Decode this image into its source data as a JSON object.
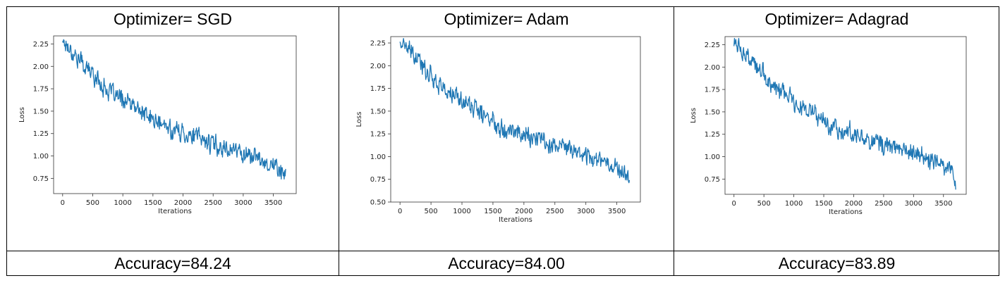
{
  "panels": [
    {
      "header": "Optimizer= SGD",
      "footer": "Accuracy=84.24"
    },
    {
      "header": "Optimizer= Adam",
      "footer": "Accuracy=84.00"
    },
    {
      "header": "Optimizer= Adagrad",
      "footer": "Accuracy=83.89"
    }
  ],
  "chart_data": [
    {
      "type": "line",
      "xlabel": "Iterations",
      "ylabel": "Loss",
      "xlim": [
        -150,
        3880
      ],
      "ylim": [
        0.58,
        2.34
      ],
      "xticks": [
        0,
        500,
        1000,
        1500,
        2000,
        2500,
        3000,
        3500
      ],
      "yticks": [
        0.75,
        1.0,
        1.25,
        1.5,
        1.75,
        2.0,
        2.25
      ],
      "line_color": "#1f77b4",
      "series": [
        {
          "x": [
            0,
            100,
            200,
            300,
            400,
            500,
            600,
            700,
            800,
            900,
            1000,
            1100,
            1200,
            1300,
            1400,
            1500,
            1600,
            1700,
            1800,
            1900,
            2000,
            2100,
            2200,
            2300,
            2400,
            2500,
            2600,
            2700,
            2800,
            2900,
            3000,
            3100,
            3200,
            3300,
            3400,
            3500,
            3600,
            3700
          ],
          "y": [
            2.3,
            2.22,
            2.13,
            2.06,
            1.98,
            1.92,
            1.84,
            1.76,
            1.7,
            1.66,
            1.63,
            1.59,
            1.54,
            1.5,
            1.44,
            1.41,
            1.36,
            1.33,
            1.3,
            1.28,
            1.26,
            1.24,
            1.22,
            1.19,
            1.16,
            1.13,
            1.11,
            1.09,
            1.08,
            1.06,
            1.03,
            1.01,
            0.99,
            0.96,
            0.93,
            0.89,
            0.86,
            0.75
          ]
        }
      ]
    },
    {
      "type": "line",
      "xlabel": "Iterations",
      "ylabel": "Loss",
      "xlim": [
        -150,
        3880
      ],
      "ylim": [
        0.5,
        2.32
      ],
      "xticks": [
        0,
        500,
        1000,
        1500,
        2000,
        2500,
        3000,
        3500
      ],
      "yticks": [
        0.5,
        0.75,
        1.0,
        1.25,
        1.5,
        1.75,
        2.0,
        2.25
      ],
      "line_color": "#1f77b4",
      "series": [
        {
          "x": [
            0,
            100,
            200,
            300,
            400,
            500,
            600,
            700,
            800,
            900,
            1000,
            1100,
            1200,
            1300,
            1400,
            1500,
            1600,
            1700,
            1800,
            1900,
            2000,
            2100,
            2200,
            2300,
            2400,
            2500,
            2600,
            2700,
            2800,
            2900,
            3000,
            3100,
            3200,
            3300,
            3400,
            3500,
            3600,
            3700
          ],
          "y": [
            2.26,
            2.2,
            2.12,
            2.04,
            1.97,
            1.9,
            1.83,
            1.75,
            1.69,
            1.65,
            1.62,
            1.58,
            1.53,
            1.48,
            1.43,
            1.4,
            1.35,
            1.32,
            1.29,
            1.27,
            1.25,
            1.22,
            1.2,
            1.18,
            1.15,
            1.12,
            1.1,
            1.08,
            1.07,
            1.05,
            1.02,
            1.0,
            0.98,
            0.95,
            0.92,
            0.88,
            0.85,
            0.7
          ]
        }
      ]
    },
    {
      "type": "line",
      "xlabel": "Iterations",
      "ylabel": "Loss",
      "xlim": [
        -150,
        3880
      ],
      "ylim": [
        0.58,
        2.34
      ],
      "xticks": [
        0,
        500,
        1000,
        1500,
        2000,
        2500,
        3000,
        3500
      ],
      "yticks": [
        0.75,
        1.0,
        1.25,
        1.5,
        1.75,
        2.0,
        2.25
      ],
      "line_color": "#1f77b4",
      "series": [
        {
          "x": [
            0,
            100,
            200,
            300,
            400,
            500,
            600,
            700,
            800,
            900,
            1000,
            1100,
            1200,
            1300,
            1400,
            1500,
            1600,
            1700,
            1800,
            1900,
            2000,
            2100,
            2200,
            2300,
            2400,
            2500,
            2600,
            2700,
            2800,
            2900,
            3000,
            3100,
            3200,
            3300,
            3400,
            3500,
            3600,
            3700
          ],
          "y": [
            2.29,
            2.21,
            2.12,
            2.05,
            1.97,
            1.91,
            1.83,
            1.76,
            1.7,
            1.66,
            1.63,
            1.58,
            1.53,
            1.49,
            1.44,
            1.4,
            1.36,
            1.33,
            1.3,
            1.28,
            1.26,
            1.24,
            1.21,
            1.19,
            1.16,
            1.13,
            1.11,
            1.09,
            1.08,
            1.06,
            1.03,
            1.01,
            0.99,
            0.96,
            0.93,
            0.89,
            0.86,
            0.74
          ]
        }
      ]
    }
  ]
}
